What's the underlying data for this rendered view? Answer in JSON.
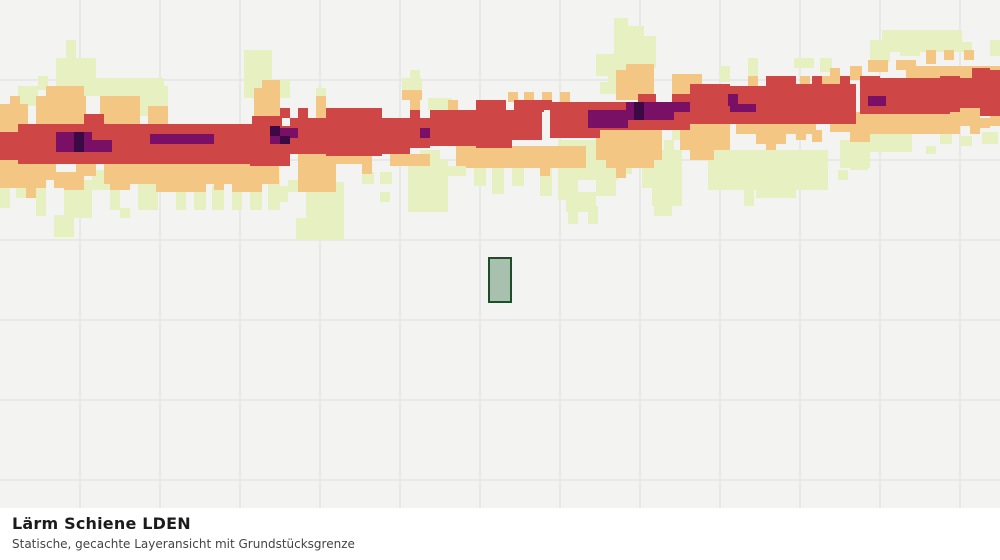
{
  "map": {
    "title": "Lärm Schiene LDEN",
    "subtitle": "Statische, gecachte Layeransicht mit Grundstücksgrenze",
    "colors": {
      "background": "#f3f4f2",
      "grid": "#dcdedb",
      "class_1": "#e6f0c0",
      "class_2": "#f4c683",
      "class_3": "#cf4646",
      "class_4": "#7a0f66",
      "class_5": "#3b0a45",
      "parcel_fill": "#a8c0ae",
      "parcel_stroke": "#1f4d2a"
    }
  }
}
